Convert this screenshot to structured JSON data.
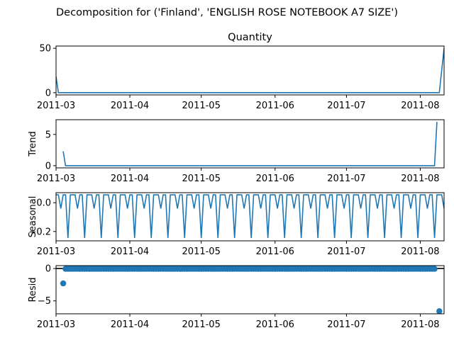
{
  "figure": {
    "suptitle": "Decomposition for ('Finland', 'ENGLISH ROSE NOTEBOOK A7 SIZE')"
  },
  "colors": {
    "series": "#1f77b4",
    "axis": "#000000"
  },
  "chart_data": [
    {
      "type": "line",
      "title": "Quantity",
      "ylabel": "",
      "xlim": [
        "2011-03-01",
        "2011-08-11"
      ],
      "ylim": [
        -2.5,
        52.5
      ],
      "yticks": [
        0,
        50
      ],
      "xticks": [
        "2011-03",
        "2011-04",
        "2011-05",
        "2011-06",
        "2011-07",
        "2011-08"
      ],
      "x": [
        "2011-03-01",
        "2011-03-02",
        "2011-08-09",
        "2011-08-11"
      ],
      "y": [
        18,
        0,
        0,
        50
      ]
    },
    {
      "type": "line",
      "title": "",
      "ylabel": "Trend",
      "xlim": [
        "2011-03-01",
        "2011-08-11"
      ],
      "ylim": [
        -0.35,
        7.35
      ],
      "yticks": [
        0,
        5
      ],
      "xticks": [
        "2011-03",
        "2011-04",
        "2011-05",
        "2011-06",
        "2011-07",
        "2011-08"
      ],
      "x": [
        "2011-03-04",
        "2011-03-05",
        "2011-08-07",
        "2011-08-08"
      ],
      "y": [
        2.3,
        0,
        0,
        7
      ]
    },
    {
      "type": "line",
      "title": "",
      "ylabel": "Seasonal",
      "xlim": [
        "2011-03-01",
        "2011-08-11"
      ],
      "ylim": [
        -0.265,
        0.07
      ],
      "yticks": [
        0.0,
        -0.2
      ],
      "ytick_labels": [
        "0.0",
        "−0.2"
      ],
      "xticks": [
        "2011-03",
        "2011-04",
        "2011-05",
        "2011-06",
        "2011-07",
        "2011-08"
      ],
      "period_days": 7,
      "pattern": [
        0.055,
        0.055,
        -0.04,
        0.055,
        0.055,
        -0.245,
        0.055
      ],
      "start": "2011-03-01",
      "end": "2011-08-11"
    },
    {
      "type": "scatter",
      "title": "",
      "ylabel": "Resid",
      "xlim": [
        "2011-03-01",
        "2011-08-11"
      ],
      "ylim": [
        -7.0,
        0.45
      ],
      "yticks": [
        0,
        -5
      ],
      "ytick_labels": [
        "0",
        "−5"
      ],
      "xticks": [
        "2011-03",
        "2011-04",
        "2011-05",
        "2011-06",
        "2011-07",
        "2011-08"
      ],
      "baseline": 0,
      "outliers": [
        {
          "x": "2011-03-04",
          "y": -2.3
        },
        {
          "x": "2011-08-09",
          "y": -6.6
        }
      ],
      "zero_points_start": "2011-03-05",
      "zero_points_end": "2011-08-07",
      "zero_value": -0.05
    }
  ]
}
